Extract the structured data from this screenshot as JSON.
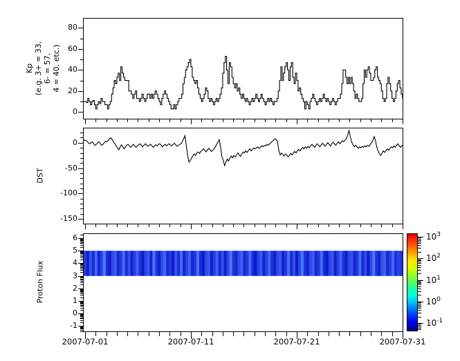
{
  "x_axis": {
    "xlim": [
      -0.196,
      30.07
    ],
    "major_days": [
      0,
      10,
      20,
      30
    ],
    "minor_days": [
      1,
      2,
      3,
      4,
      5,
      6,
      7,
      8,
      9,
      11,
      12,
      13,
      14,
      15,
      16,
      17,
      18,
      19,
      21,
      22,
      23,
      24,
      25,
      26,
      27,
      28,
      29
    ],
    "tick_labels": [
      "2007-07-01",
      "2007-07-11",
      "2007-07-21",
      "2007-07-31"
    ]
  },
  "chart_data": [
    {
      "type": "line",
      "step": true,
      "ylabel_lines": [
        "Kp",
        "(e.g. 3+ = 33,",
        "6- = 57,",
        "4 = 40, etc.)"
      ],
      "ylim": [
        -7.0,
        89.4
      ],
      "yticks": [
        0,
        20,
        40,
        60,
        80
      ],
      "yminor": [
        10,
        30,
        50,
        70
      ],
      "sample_hours": 3,
      "values": [
        10,
        9,
        13,
        10,
        7,
        10,
        11,
        7,
        3,
        7,
        10,
        8,
        13,
        10,
        10,
        7,
        7,
        3,
        7,
        10,
        17,
        23,
        30,
        27,
        33,
        37,
        30,
        43,
        37,
        33,
        30,
        30,
        30,
        20,
        20,
        17,
        13,
        17,
        20,
        13,
        13,
        10,
        13,
        17,
        13,
        10,
        13,
        17,
        17,
        13,
        17,
        13,
        17,
        20,
        17,
        13,
        10,
        7,
        13,
        17,
        20,
        17,
        13,
        10,
        7,
        3,
        3,
        7,
        3,
        7,
        10,
        13,
        13,
        17,
        27,
        33,
        40,
        43,
        47,
        50,
        43,
        33,
        30,
        27,
        30,
        23,
        17,
        13,
        10,
        13,
        17,
        23,
        20,
        13,
        10,
        13,
        10,
        7,
        10,
        13,
        10,
        13,
        17,
        23,
        37,
        47,
        53,
        40,
        27,
        47,
        43,
        33,
        27,
        23,
        27,
        20,
        23,
        17,
        13,
        17,
        13,
        10,
        13,
        10,
        7,
        10,
        13,
        10,
        13,
        17,
        13,
        10,
        13,
        17,
        13,
        10,
        7,
        10,
        13,
        10,
        13,
        10,
        7,
        10,
        10,
        13,
        20,
        30,
        43,
        30,
        37,
        43,
        47,
        40,
        30,
        43,
        47,
        33,
        27,
        37,
        30,
        20,
        23,
        17,
        13,
        10,
        3,
        10,
        7,
        3,
        10,
        13,
        17,
        13,
        10,
        7,
        10,
        13,
        10,
        13,
        17,
        13,
        10,
        13,
        10,
        7,
        10,
        13,
        10,
        7,
        10,
        13,
        13,
        17,
        27,
        40,
        40,
        33,
        27,
        33,
        27,
        33,
        27,
        20,
        13,
        17,
        13,
        10,
        10,
        13,
        27,
        40,
        33,
        40,
        43,
        37,
        30,
        30,
        33,
        40,
        43,
        33,
        30,
        27,
        20,
        13,
        10,
        13,
        27,
        33,
        27,
        20,
        13,
        10,
        13,
        20,
        27,
        30,
        23,
        17,
        13,
        17,
        13,
        10,
        13,
        20,
        30,
        40
      ]
    },
    {
      "type": "line",
      "step": false,
      "ylabel": "DST",
      "ylim": [
        -160.6,
        29.7
      ],
      "yticks": [
        0,
        -50,
        -100,
        -150
      ],
      "yminor": [
        20,
        10,
        -10,
        -20,
        -30,
        -40,
        -60,
        -70,
        -80,
        -90,
        -110,
        -120,
        -130,
        -140
      ],
      "sample_hours": 3,
      "values": [
        5,
        3,
        0,
        -2,
        0,
        2,
        -2,
        -5,
        -3,
        0,
        2,
        -2,
        -5,
        -3,
        0,
        3,
        2,
        5,
        8,
        10,
        6,
        2,
        -2,
        -6,
        -10,
        -14,
        -8,
        -4,
        -8,
        -12,
        -8,
        -5,
        -3,
        -6,
        -9,
        -6,
        -3,
        -6,
        -9,
        -6,
        -4,
        -2,
        -5,
        -8,
        -5,
        -2,
        -4,
        -7,
        -5,
        -3,
        -6,
        -9,
        -6,
        -4,
        -6,
        -3,
        -2,
        -5,
        -8,
        -5,
        -3,
        -6,
        -4,
        -2,
        -4,
        -6,
        -3,
        -1,
        -4,
        -7,
        -5,
        -3,
        -2,
        2,
        8,
        14,
        -5,
        -25,
        -38,
        -35,
        -30,
        -26,
        -22,
        -25,
        -20,
        -18,
        -21,
        -17,
        -15,
        -12,
        -15,
        -18,
        -14,
        -11,
        -14,
        -17,
        -15,
        -12,
        -8,
        -3,
        2,
        6,
        -10,
        -28,
        -35,
        -45,
        -38,
        -32,
        -36,
        -30,
        -26,
        -30,
        -25,
        -28,
        -24,
        -20,
        -24,
        -27,
        -22,
        -18,
        -20,
        -16,
        -19,
        -15,
        -12,
        -16,
        -13,
        -10,
        -12,
        -10,
        -8,
        -11,
        -9,
        -6,
        -8,
        -5,
        -6,
        -3,
        -5,
        -2,
        0,
        3,
        5,
        8,
        6,
        2,
        -15,
        -24,
        -20,
        -23,
        -26,
        -22,
        -24,
        -28,
        -25,
        -21,
        -24,
        -20,
        -17,
        -20,
        -16,
        -13,
        -16,
        -12,
        -9,
        -12,
        -8,
        -11,
        -7,
        -10,
        -6,
        -3,
        -6,
        -9,
        -5,
        -2,
        -5,
        -8,
        -4,
        -1,
        -4,
        -7,
        -3,
        0,
        -3,
        -6,
        -2,
        1,
        -2,
        -5,
        -1,
        2,
        -2,
        1,
        4,
        2,
        5,
        8,
        15,
        25,
        12,
        2,
        -4,
        -8,
        -5,
        -8,
        -11,
        -8,
        -10,
        -7,
        -9,
        -6,
        -8,
        -5,
        -7,
        -4,
        0,
        4,
        12,
        5,
        -8,
        -16,
        -22,
        -25,
        -20,
        -16,
        -19,
        -15,
        -12,
        -15,
        -11,
        -8,
        -10,
        -6,
        -9,
        -5,
        -2,
        -6,
        -9,
        -6,
        -4,
        -7,
        -3,
        0,
        -4,
        -8,
        -5,
        -2
      ]
    },
    {
      "type": "heatmap",
      "ylabel": "Proton Flux",
      "ylim": [
        -1.47,
        6.39
      ],
      "yticks": [
        6,
        5,
        4,
        3,
        2,
        1,
        0,
        -1
      ],
      "log_minor": true,
      "band": {
        "y_top": 5,
        "y_bottom": 3
      },
      "band_base_color": "#0212d2",
      "streaks": [
        0.35,
        0.12,
        0.55,
        0.2,
        0.7,
        0.15,
        0.4,
        0.85,
        0.25,
        0.1,
        0.45,
        0.6,
        0.18,
        0.32,
        0.75,
        0.22,
        0.5,
        0.14,
        0.38,
        0.65,
        0.28,
        0.08,
        0.42,
        0.58,
        0.16,
        0.8,
        0.3,
        0.12,
        0.48,
        0.68,
        0.2,
        0.36,
        0.1,
        0.55,
        0.25,
        0.72,
        0.15,
        0.4,
        0.62,
        0.18,
        0.33,
        0.78,
        0.24,
        0.09,
        0.46,
        0.57,
        0.13,
        0.37,
        0.66,
        0.21,
        0.52,
        0.11,
        0.43,
        0.83,
        0.27,
        0.17,
        0.49,
        0.63,
        0.19,
        0.34,
        0.74,
        0.23,
        0.07,
        0.41,
        0.59,
        0.15,
        0.39,
        0.69,
        0.26,
        0.12,
        0.47,
        0.56,
        0.14,
        0.31,
        0.77,
        0.22,
        0.51,
        0.1,
        0.44,
        0.81,
        0.29,
        0.16,
        0.48,
        0.61,
        0.2,
        0.35,
        0.73,
        0.24,
        0.08,
        0.42,
        0.58,
        0.13,
        0.38,
        0.67,
        0.27,
        0.11,
        0.45,
        0.54,
        0.18,
        0.32,
        0.76,
        0.21,
        0.5,
        0.09,
        0.43,
        0.82,
        0.28,
        0.15,
        0.49,
        0.64,
        0.19,
        0.36,
        0.71,
        0.23,
        0.4,
        0.3
      ]
    }
  ],
  "colorbar": {
    "scale": "log",
    "tick_exponents": [
      3,
      2,
      1,
      0,
      -1
    ],
    "gradient_colors": [
      "#000080",
      "#0000f3",
      "#004cff",
      "#00b0ff",
      "#00ffe0",
      "#29ff8e",
      "#7dff3a",
      "#ceff00",
      "#ffe600",
      "#ff9400",
      "#ff4300",
      "#e40000"
    ]
  }
}
